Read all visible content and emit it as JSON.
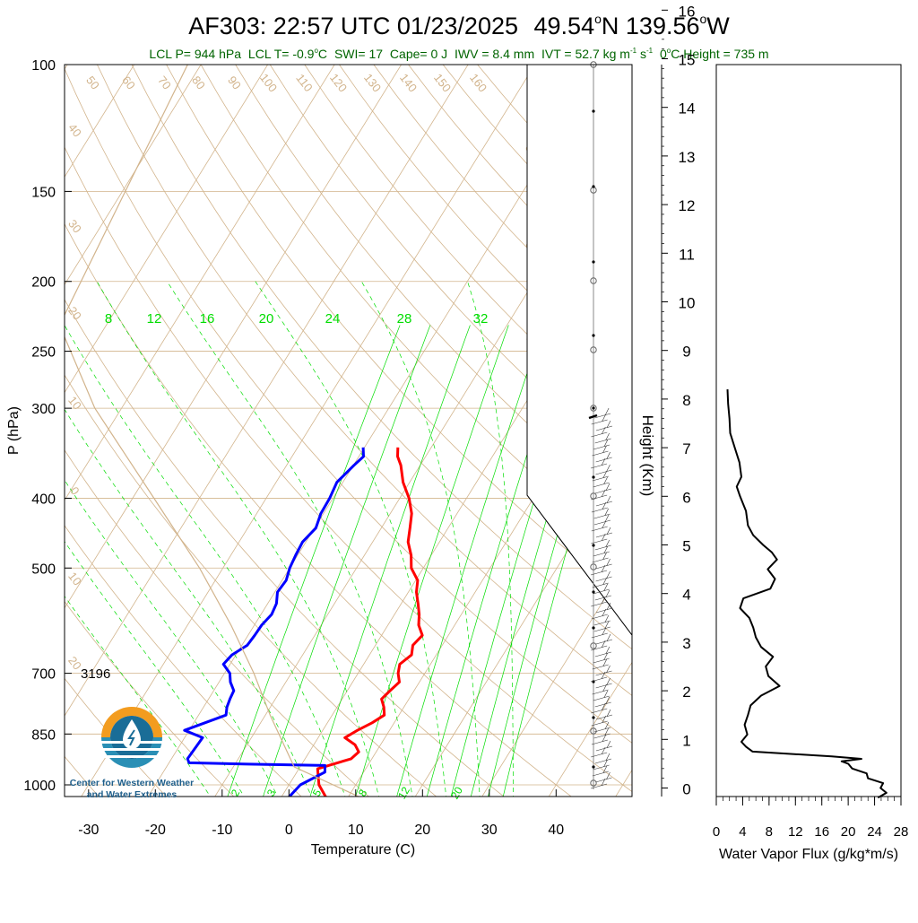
{
  "title": {
    "flight": "AF303:",
    "time": "22:57 UTC 01/23/2025",
    "lat": "49.54",
    "lat_hemi": "N",
    "lon": "139.56",
    "lon_hemi": "W",
    "degree": "o"
  },
  "subtitle": {
    "lcl_p": "LCL P= 944 hPa",
    "lcl_t": "LCL T= -0.9",
    "lcl_t_unit": "C",
    "swi": "SWI= 17",
    "cape": "Cape= 0 J",
    "iwv": "IWV = 8.4 mm",
    "ivt": "IVT = 52.7 kg m",
    "ivt_exp1": "-1",
    "ivt_s": " s",
    "ivt_exp2": "-1",
    "freezing": "0",
    "freezing_rest": "C Height = 735 m",
    "color": "#006400"
  },
  "logo": {
    "line1": "Center for Western Weather",
    "line2": "and Water Extremes",
    "colors": {
      "orange": "#f39c1f",
      "blue": "#1a6d97",
      "teal": "#2a8fb5"
    }
  },
  "annotation": {
    "label": "3196"
  },
  "colors": {
    "temperature": "#ff0000",
    "dewpoint": "#0000ff",
    "isotherm": "#d2b48c",
    "mixing_ratio": "#00dd00",
    "parcel": "#d2b48c",
    "text": "#000000"
  },
  "chart_data": [
    {
      "type": "line",
      "title": "Skew-T log-P",
      "xlabel": "Temperature (C)",
      "ylabel": "P (hPa)",
      "y_scale": "log (inverted)",
      "xlim": [
        -34,
        50
      ],
      "ylim": [
        1050,
        100
      ],
      "x_ticks": [
        "-30",
        "-20",
        "-10",
        "0",
        "10",
        "20",
        "30",
        "40"
      ],
      "x_tick_values": [
        -30,
        -20,
        -10,
        0,
        10,
        20,
        30,
        40
      ],
      "y_ticks": [
        "100",
        "150",
        "200",
        "250",
        "300",
        "400",
        "500",
        "700",
        "850",
        "1000"
      ],
      "y_tick_values": [
        100,
        150,
        200,
        250,
        300,
        400,
        500,
        700,
        850,
        1000
      ],
      "series": [
        {
          "name": "Temperature",
          "p": [
            1050,
            1000,
            950,
            920,
            900,
            880,
            860,
            840,
            820,
            800,
            780,
            760,
            740,
            720,
            700,
            680,
            660,
            640,
            620,
            600,
            580,
            560,
            540,
            520,
            500,
            480,
            460,
            440,
            420,
            400,
            380,
            360,
            350,
            340
          ],
          "t": [
            7.2,
            4.5,
            2.8,
            6.9,
            7.4,
            6.2,
            4.0,
            5.2,
            6.7,
            7.8,
            7.0,
            5.9,
            6.4,
            7.0,
            6.0,
            5.4,
            6.3,
            5.6,
            6.1,
            4.6,
            3.7,
            2.5,
            1.2,
            0.3,
            -1.8,
            -3.0,
            -4.7,
            -5.7,
            -6.8,
            -8.6,
            -11.0,
            -12.9,
            -14.2,
            -15.0
          ]
        },
        {
          "name": "Dewpoint",
          "p": [
            1050,
            1000,
            960,
            940,
            936,
            932,
            920,
            880,
            860,
            840,
            800,
            780,
            760,
            740,
            720,
            700,
            680,
            660,
            640,
            620,
            600,
            580,
            560,
            540,
            520,
            500,
            480,
            460,
            440,
            420,
            400,
            380,
            360,
            350,
            340
          ],
          "t": [
            1.0,
            1.7,
            4.2,
            3.6,
            -8.0,
            -17.0,
            -17.6,
            -17.4,
            -17.3,
            -20.7,
            -15.9,
            -16.5,
            -16.8,
            -17.0,
            -18.3,
            -19.2,
            -21.0,
            -20.6,
            -19.2,
            -19.0,
            -18.9,
            -18.4,
            -18.7,
            -19.6,
            -19.4,
            -20.0,
            -20.3,
            -20.5,
            -19.8,
            -20.4,
            -20.5,
            -20.9,
            -19.9,
            -19.3,
            -20.2
          ]
        },
        {
          "name": "Parcel",
          "p": [
            1050,
            944,
            800,
            700,
            600,
            500,
            400,
            300,
            230,
            100
          ],
          "t": [
            13.0,
            -0.9,
            -9.3,
            -15.6,
            -23.5,
            -33.5,
            -46.8,
            -64.0,
            -77.0,
            -82.0
          ]
        }
      ],
      "isotherm_labels": [
        "50",
        "60",
        "70",
        "80",
        "90",
        "100",
        "110",
        "120",
        "130",
        "140",
        "150",
        "160",
        "40",
        "30",
        "20",
        "10",
        "0",
        "10",
        "20",
        "30",
        "20",
        "10",
        "0",
        "10",
        "20",
        "30"
      ],
      "mixing_ratio_labels_top": [
        "8",
        "12",
        "16",
        "20",
        "24",
        "28",
        "32"
      ],
      "mixing_ratio_labels_bottom": [
        "2",
        "3",
        "5",
        "8",
        "12",
        "20"
      ]
    },
    {
      "type": "line",
      "title": "",
      "xlabel": "Water Vapor Flux (g/kg*m/s)",
      "ylabel": "Height (Km)",
      "xlim": [
        0,
        28
      ],
      "ylim": [
        -0.3,
        16.3
      ],
      "x_ticks": [
        "0",
        "4",
        "8",
        "12",
        "16",
        "20",
        "24",
        "28"
      ],
      "x_tick_values": [
        0,
        4,
        8,
        12,
        16,
        20,
        24,
        28
      ],
      "y_ticks": [
        "0",
        "1",
        "2",
        "3",
        "4",
        "5",
        "6",
        "7",
        "8",
        "9",
        "10",
        "11",
        "12",
        "13",
        "14",
        "15",
        "16"
      ],
      "y_tick_values": [
        0,
        1,
        2,
        3,
        4,
        5,
        6,
        7,
        8,
        9,
        10,
        11,
        12,
        13,
        14,
        15,
        16
      ],
      "series": [
        {
          "name": "Water Vapor Flux",
          "h": [
            -0.2,
            -0.1,
            0.0,
            0.1,
            0.2,
            0.3,
            0.4,
            0.5,
            0.55,
            0.6,
            0.65,
            0.75,
            0.85,
            0.95,
            1.1,
            1.3,
            1.5,
            1.7,
            1.9,
            2.1,
            2.3,
            2.5,
            2.7,
            2.9,
            3.1,
            3.3,
            3.5,
            3.7,
            3.9,
            4.1,
            4.3,
            4.5,
            4.7,
            4.85,
            5.0,
            5.2,
            5.4,
            5.7,
            6.0,
            6.2,
            6.4,
            6.7,
            7.0,
            7.3,
            7.6,
            7.9,
            8.2
          ],
          "v": [
            24.5,
            25.8,
            24.9,
            25.3,
            23.0,
            22.8,
            20.6,
            20.0,
            19.0,
            22.0,
            17.5,
            5.5,
            4.5,
            3.8,
            4.7,
            4.3,
            4.8,
            5.2,
            6.8,
            9.6,
            7.9,
            7.5,
            8.6,
            6.8,
            6.0,
            5.6,
            5.0,
            3.6,
            4.1,
            8.2,
            8.9,
            7.8,
            9.2,
            8.4,
            7.1,
            5.6,
            4.8,
            4.5,
            3.6,
            3.1,
            3.8,
            3.5,
            2.8,
            2.1,
            2.0,
            1.8,
            1.7
          ]
        }
      ]
    }
  ]
}
